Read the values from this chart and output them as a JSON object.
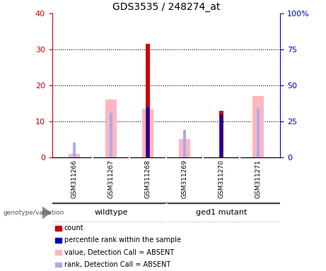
{
  "title": "GDS3535 / 248274_at",
  "samples": [
    "GSM311266",
    "GSM311267",
    "GSM311268",
    "GSM311269",
    "GSM311270",
    "GSM311271"
  ],
  "count_values": [
    0,
    0,
    31.5,
    0,
    13.0,
    0
  ],
  "percentile_rank_values": [
    0,
    0,
    35,
    0,
    30,
    0
  ],
  "absent_value_values": [
    1.0,
    16.0,
    13.5,
    5.0,
    0,
    17.0
  ],
  "absent_rank_values": [
    10,
    31,
    0,
    19,
    0,
    34
  ],
  "left_ylim": [
    0,
    40
  ],
  "right_ylim": [
    0,
    100
  ],
  "left_yticks": [
    0,
    10,
    20,
    30,
    40
  ],
  "right_yticks": [
    0,
    25,
    50,
    75,
    100
  ],
  "left_ytick_labels": [
    "0",
    "10",
    "20",
    "30",
    "40"
  ],
  "right_ytick_labels": [
    "0",
    "25",
    "50",
    "75",
    "100%"
  ],
  "count_color": "#CC0000",
  "percentile_rank_color": "#0000BB",
  "absent_value_color": "#FFB6C1",
  "absent_rank_color": "#AAAAEE",
  "wildtype_color": "#90EE90",
  "mutant_color": "#00DD00",
  "sample_bg_color": "#CCCCCC",
  "legend_items": [
    {
      "label": "count",
      "color": "#CC0000"
    },
    {
      "label": "percentile rank within the sample",
      "color": "#0000BB"
    },
    {
      "label": "value, Detection Call = ABSENT",
      "color": "#FFB6C1"
    },
    {
      "label": "rank, Detection Call = ABSENT",
      "color": "#AAAAEE"
    }
  ]
}
